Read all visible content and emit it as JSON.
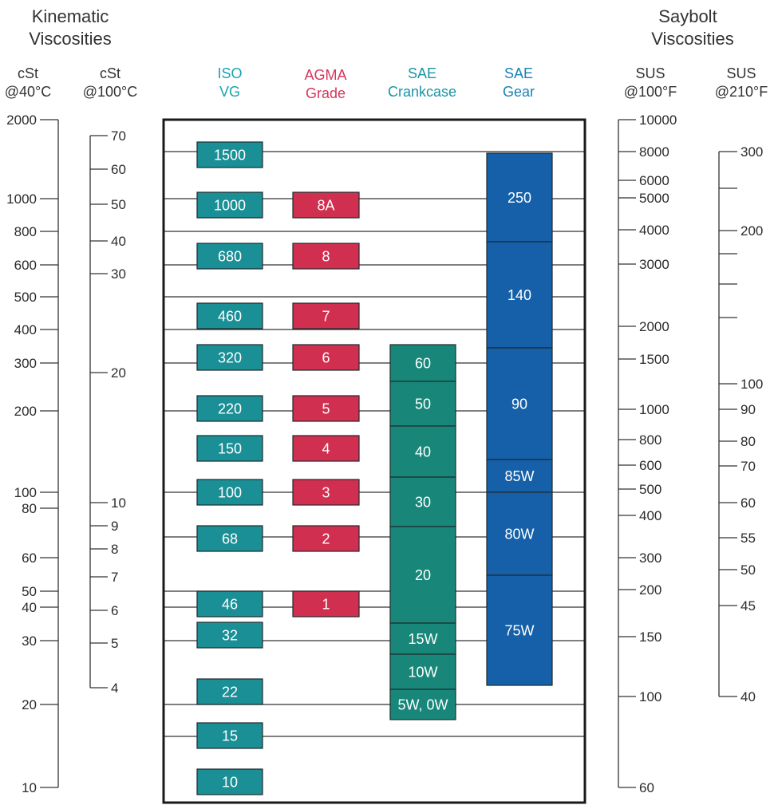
{
  "headers": {
    "kinematic_title": [
      "Kinematic",
      "Viscosities"
    ],
    "saybolt_title": [
      "Saybolt",
      "Viscosities"
    ]
  },
  "columns": {
    "cst40": [
      "cSt",
      "@40°C"
    ],
    "cst100": [
      "cSt",
      "@100°C"
    ],
    "iso": [
      "ISO",
      "VG"
    ],
    "agma": [
      "AGMA",
      "Grade"
    ],
    "sae_crankcase": [
      "SAE",
      "Crankcase"
    ],
    "sae_gear": [
      "SAE",
      "Gear"
    ],
    "sus100": [
      "SUS",
      "@100°F"
    ],
    "sus210": [
      "SUS",
      "@210°F"
    ]
  },
  "colors": {
    "iso": "#1a8f96",
    "agma": "#d12f4f",
    "crankcase": "#18877a",
    "gear": "#1560a8",
    "iso_header": "#1aa3b0",
    "agma_header": "#d8345a",
    "sae_header": "#1a93a6",
    "gear_header": "#1a82b3",
    "text": "#333333"
  },
  "scales": {
    "cst40": [
      "2000",
      "1000",
      "800",
      "600",
      "500",
      "400",
      "300",
      "200",
      "100",
      "80",
      "60",
      "50",
      "40",
      "30",
      "20",
      "10"
    ],
    "cst100": [
      "70",
      "60",
      "50",
      "40",
      "30",
      "20",
      "10",
      "9",
      "8",
      "7",
      "6",
      "5",
      "4"
    ],
    "sus100": [
      "10000",
      "8000",
      "6000",
      "5000",
      "4000",
      "3000",
      "2000",
      "1500",
      "1000",
      "800",
      "600",
      "500",
      "400",
      "300",
      "200",
      "150",
      "100",
      "60"
    ],
    "sus210": [
      "300",
      "200",
      "100",
      "90",
      "80",
      "70",
      "60",
      "55",
      "50",
      "45",
      "40"
    ]
  },
  "iso_grades": [
    "1500",
    "1000",
    "680",
    "460",
    "320",
    "220",
    "150",
    "100",
    "68",
    "46",
    "32",
    "22",
    "15",
    "10"
  ],
  "agma_grades": [
    "8A",
    "8",
    "7",
    "6",
    "5",
    "4",
    "3",
    "2",
    "1"
  ],
  "sae_crankcase": [
    "60",
    "50",
    "40",
    "30",
    "20",
    "15W",
    "10W",
    "5W, 0W"
  ],
  "sae_gear": [
    "250",
    "140",
    "90",
    "85W",
    "80W",
    "75W"
  ]
}
